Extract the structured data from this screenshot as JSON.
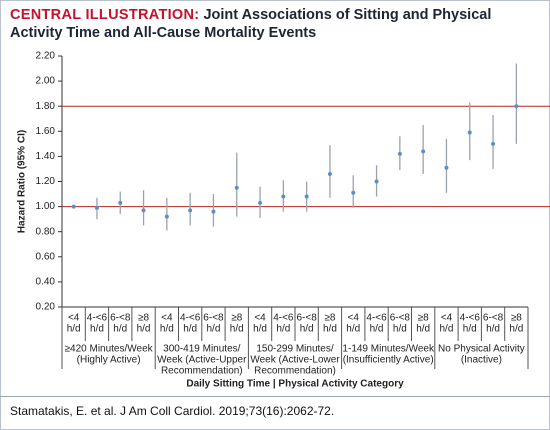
{
  "chart_data": {
    "type": "errorbar",
    "label": "CENTRAL ILLUSTRATION:",
    "title": "Joint Associations of Sitting and Physical Activity Time and All-Cause Mortality Events",
    "y_label": "Hazard Ratio (95% CI)",
    "x_label": "Daily Sitting Time | Physical Activity Category",
    "citation": "Stamatakis, E. et al. J Am Coll Cardiol. 2019;73(16):2062-72.",
    "unit": "h/d",
    "categories": [
      "<4",
      "4-<6",
      "6-<8",
      "≥8",
      "<4",
      "4-<6",
      "6-<8",
      "≥8",
      "<4",
      "4-<6",
      "6-<8",
      "≥8",
      "<4",
      "4-<6",
      "6-<8",
      "≥8",
      "<4",
      "4-<6",
      "6-<8",
      "≥8"
    ],
    "groups": [
      [
        "≥420 Minutes/Week",
        "(Highly Active)"
      ],
      [
        "300-419 Minutes/",
        "Week (Active-Upper",
        "Recommendation)"
      ],
      [
        "150-299 Minutes/",
        "Week (Active-Lower",
        "Recommendation)"
      ],
      [
        "1-149 Minutes/Week",
        "(Insufficiently Active)"
      ],
      [
        "No Physical Activity",
        "(Inactive)"
      ]
    ],
    "values": [
      1.0,
      0.99,
      1.03,
      0.97,
      0.92,
      0.97,
      0.96,
      1.15,
      1.03,
      1.08,
      1.08,
      1.26,
      1.11,
      1.2,
      1.42,
      1.44,
      1.31,
      1.59,
      1.5,
      1.8
    ],
    "lower": [
      null,
      0.9,
      0.94,
      0.85,
      0.81,
      0.85,
      0.84,
      0.92,
      0.91,
      0.96,
      0.96,
      1.07,
      0.99,
      1.08,
      1.29,
      1.26,
      1.11,
      1.37,
      1.3,
      1.5
    ],
    "upper": [
      null,
      1.07,
      1.12,
      1.13,
      1.07,
      1.11,
      1.1,
      1.43,
      1.16,
      1.21,
      1.2,
      1.49,
      1.25,
      1.33,
      1.56,
      1.65,
      1.54,
      1.83,
      1.73,
      2.14
    ],
    "color": "#5b8fcc",
    "ci_color": "#9aa3ad",
    "hlines": [
      1.0,
      1.8
    ],
    "hline_color": "#b3261e",
    "ylim": [
      0.2,
      2.2
    ],
    "yticks": [
      {
        "value": 0.2,
        "label": "0.20"
      },
      {
        "value": 0.4,
        "label": "0.40"
      },
      {
        "value": 0.6,
        "label": "0.60"
      },
      {
        "value": 0.8,
        "label": "0.80"
      },
      {
        "value": 1.0,
        "label": "1.00"
      },
      {
        "value": 1.2,
        "label": "1.20"
      },
      {
        "value": 1.4,
        "label": "1.40"
      },
      {
        "value": 1.6,
        "label": "1.60"
      },
      {
        "value": 1.8,
        "label": "1.80"
      },
      {
        "value": 2.0,
        "label": "2.00"
      },
      {
        "value": 2.2,
        "label": "2.20"
      }
    ]
  }
}
